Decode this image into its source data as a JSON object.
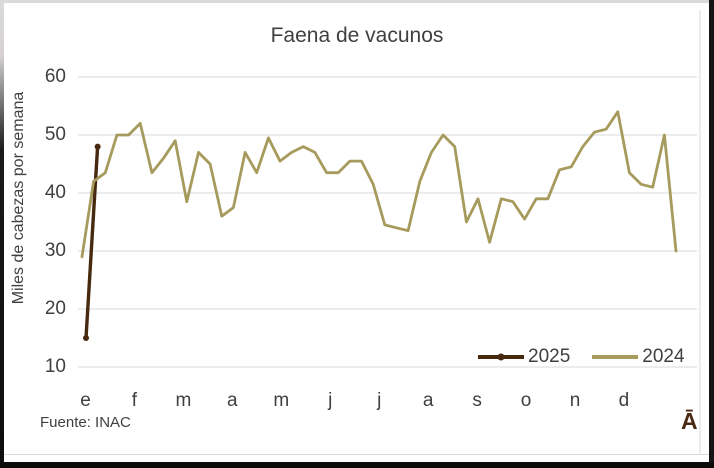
{
  "title": "Faena de vacunos",
  "y_axis": {
    "label": "Miles de cabezas por semana",
    "ticks": [
      60,
      50,
      40,
      30,
      20,
      10
    ]
  },
  "x_axis": {
    "months": [
      "e",
      "f",
      "m",
      "a",
      "m",
      "j",
      "j",
      "a",
      "s",
      "o",
      "n",
      "d"
    ]
  },
  "legend": [
    {
      "label": "2025",
      "color": "#46290f",
      "marker": true
    },
    {
      "label": "2024",
      "color": "#a69a5c",
      "marker": false
    }
  ],
  "footer": {
    "source": "Fuente: INAC",
    "corner_glyph": "Ā"
  },
  "colors": {
    "series_2025": "#46290f",
    "series_2024": "#a69a5c",
    "gridline": "#d9d9d9",
    "text": "#404040"
  },
  "chart_data": {
    "type": "line",
    "title": "Faena de vacunos",
    "xlabel": "",
    "ylabel": "Miles de cabezas por semana",
    "x_unit": "week of year (weekly data, months e..d)",
    "ylim": [
      10,
      60
    ],
    "grid": "horizontal",
    "legend_position": "inside-bottom-right",
    "series": [
      {
        "name": "2025",
        "color": "#46290f",
        "marker": true,
        "values": [
          15,
          48
        ]
      },
      {
        "name": "2024",
        "color": "#a69a5c",
        "marker": false,
        "values": [
          29,
          42,
          43.5,
          50,
          50,
          52,
          43.5,
          46,
          49,
          38.5,
          47,
          45,
          36,
          37.5,
          47,
          43.5,
          49.5,
          45.5,
          47,
          48,
          47,
          43.5,
          43.5,
          45.5,
          45.5,
          41.5,
          34.5,
          34,
          33.5,
          42,
          47,
          50,
          48,
          35,
          39,
          31.5,
          39,
          38.5,
          35.5,
          39,
          39,
          44,
          44.5,
          48,
          50.5,
          51,
          54,
          43.5,
          41.5,
          41,
          50,
          30
        ]
      }
    ]
  }
}
